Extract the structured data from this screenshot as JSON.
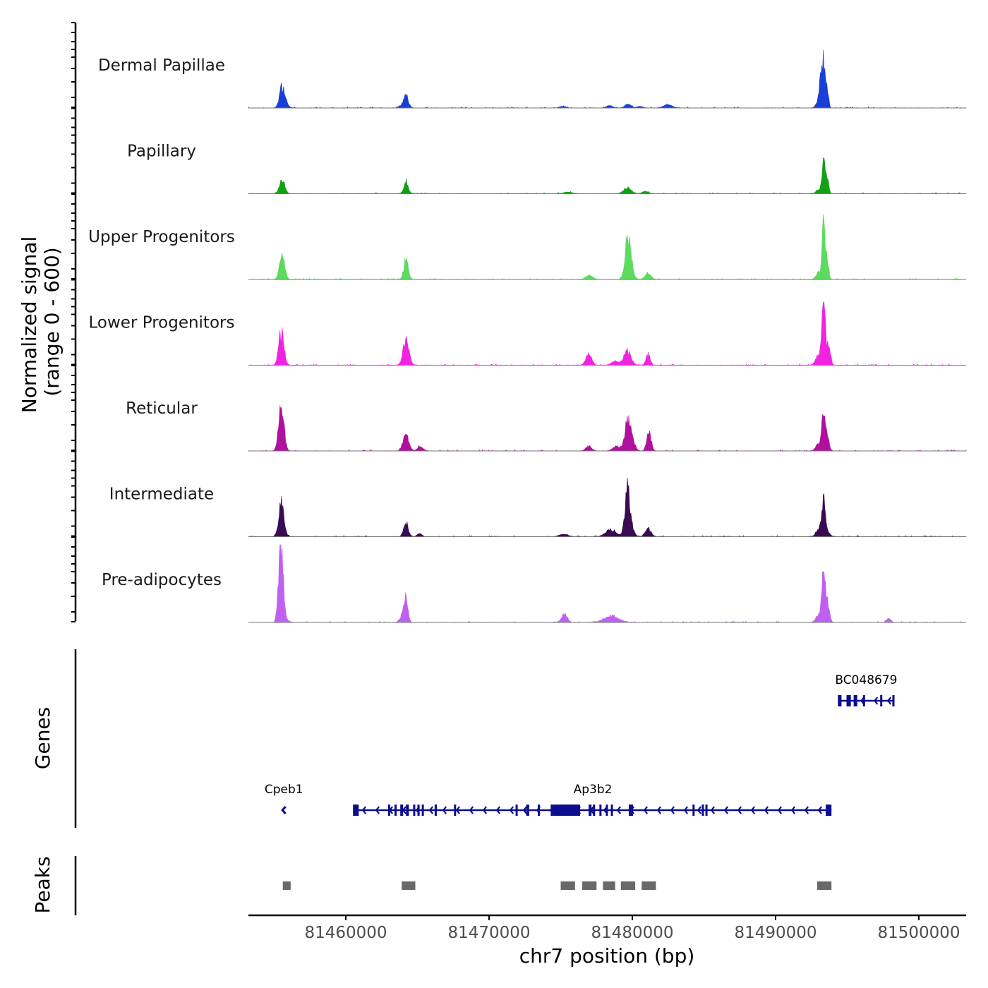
{
  "chart_data": {
    "type": "coverage-track",
    "title": "",
    "chromosome": "chr7",
    "xlabel": "chr7 position (bp)",
    "ylabel": [
      "Normalized signal",
      "(range 0 - 600)"
    ],
    "signal_range": [
      0,
      600
    ],
    "xlim": [
      81453200,
      81503300
    ],
    "x_ticks": [
      81460000,
      81470000,
      81480000,
      81490000,
      81500000
    ],
    "x_tick_labels": [
      "81460000",
      "81470000",
      "81480000",
      "81490000",
      "81500000"
    ],
    "tracks": [
      {
        "name": "Dermal Papillae",
        "color": "#1a3fd6",
        "peaks": [
          [
            81455550,
            0.27,
            180
          ],
          [
            81455850,
            0.03,
            200
          ],
          [
            81464220,
            0.13,
            150
          ],
          [
            81464050,
            0.04,
            250
          ],
          [
            81482480,
            0.04,
            300
          ],
          [
            81475120,
            0.02,
            200
          ],
          [
            81478420,
            0.03,
            200
          ],
          [
            81479700,
            0.05,
            200
          ],
          [
            81480500,
            0.02,
            200
          ],
          [
            81493350,
            0.58,
            90
          ],
          [
            81493600,
            0.28,
            90
          ],
          [
            81493050,
            0.12,
            180
          ],
          [
            81493150,
            0.3,
            80
          ]
        ]
      },
      {
        "name": "Papillary",
        "color": "#14a014",
        "peaks": [
          [
            81455550,
            0.18,
            180
          ],
          [
            81464210,
            0.15,
            150
          ],
          [
            81479650,
            0.08,
            250
          ],
          [
            81480900,
            0.03,
            200
          ],
          [
            81475500,
            0.02,
            300
          ],
          [
            81493350,
            0.4,
            100
          ],
          [
            81493600,
            0.22,
            100
          ],
          [
            81493050,
            0.05,
            200
          ]
        ]
      },
      {
        "name": "Upper Progenitors",
        "color": "#5ddb5d",
        "peaks": [
          [
            81455550,
            0.28,
            180
          ],
          [
            81464210,
            0.27,
            150
          ],
          [
            81477000,
            0.05,
            250
          ],
          [
            81479650,
            0.42,
            180
          ],
          [
            81479850,
            0.18,
            200
          ],
          [
            81481100,
            0.08,
            200
          ],
          [
            81493350,
            0.7,
            90
          ],
          [
            81493600,
            0.28,
            100
          ],
          [
            81493050,
            0.1,
            200
          ]
        ]
      },
      {
        "name": "Lower Progenitors",
        "color": "#f024e0",
        "peaks": [
          [
            81455500,
            0.42,
            180
          ],
          [
            81464200,
            0.33,
            200
          ],
          [
            81476950,
            0.13,
            200
          ],
          [
            81479650,
            0.18,
            250
          ],
          [
            81478800,
            0.05,
            250
          ],
          [
            81481100,
            0.14,
            150
          ],
          [
            81493350,
            0.85,
            110
          ],
          [
            81493700,
            0.3,
            120
          ],
          [
            81493000,
            0.12,
            200
          ]
        ]
      },
      {
        "name": "Reticular",
        "color": "#b0109e",
        "peaks": [
          [
            81455500,
            0.55,
            180
          ],
          [
            81464200,
            0.2,
            200
          ],
          [
            81465200,
            0.05,
            200
          ],
          [
            81476950,
            0.06,
            200
          ],
          [
            81479650,
            0.33,
            200
          ],
          [
            81479950,
            0.15,
            200
          ],
          [
            81478900,
            0.06,
            250
          ],
          [
            81481150,
            0.25,
            150
          ],
          [
            81493350,
            0.55,
            110
          ],
          [
            81493600,
            0.18,
            120
          ],
          [
            81493000,
            0.08,
            200
          ]
        ]
      },
      {
        "name": "Intermediate",
        "color": "#3a0a55",
        "peaks": [
          [
            81455500,
            0.43,
            180
          ],
          [
            81464200,
            0.17,
            160
          ],
          [
            81465150,
            0.04,
            150
          ],
          [
            81475200,
            0.03,
            300
          ],
          [
            81478500,
            0.09,
            350
          ],
          [
            81479650,
            0.55,
            170
          ],
          [
            81479900,
            0.12,
            200
          ],
          [
            81481100,
            0.1,
            200
          ],
          [
            81493350,
            0.48,
            110
          ],
          [
            81493050,
            0.1,
            200
          ],
          [
            81493650,
            0.06,
            150
          ]
        ]
      },
      {
        "name": "Pre-adipocytes",
        "color": "#c060f0",
        "peaks": [
          [
            81455450,
            0.95,
            150
          ],
          [
            81455650,
            0.12,
            180
          ],
          [
            81464180,
            0.3,
            140
          ],
          [
            81464000,
            0.08,
            200
          ],
          [
            81475250,
            0.1,
            200
          ],
          [
            81478550,
            0.08,
            500
          ],
          [
            81493350,
            0.72,
            110
          ],
          [
            81493650,
            0.25,
            120
          ],
          [
            81493000,
            0.1,
            180
          ],
          [
            81497900,
            0.05,
            150
          ]
        ]
      }
    ],
    "genes": [
      {
        "name": "BC048679",
        "strand": "-",
        "start": 81494350,
        "end": 81498300,
        "row": 1,
        "exons": [
          [
            81494350,
            81494600
          ],
          [
            81494950,
            81495250
          ],
          [
            81495450,
            81495700
          ],
          [
            81496100,
            81496200
          ],
          [
            81497300,
            81497400
          ],
          [
            81498150,
            81498300
          ]
        ]
      },
      {
        "name": "Cpeb1",
        "strand": "-",
        "start": 81455550,
        "end": 81455800,
        "row": 2,
        "exons": []
      },
      {
        "name": "Ap3b2",
        "strand": "-",
        "start": 81460500,
        "end": 81493900,
        "row": 2,
        "exons": [
          [
            81460500,
            81460900
          ],
          [
            81462950,
            81463050
          ],
          [
            81463400,
            81463500
          ],
          [
            81463800,
            81464000
          ],
          [
            81464200,
            81464400
          ],
          [
            81464700,
            81464800
          ],
          [
            81465000,
            81465150
          ],
          [
            81465300,
            81465400
          ],
          [
            81466200,
            81466350
          ],
          [
            81467550,
            81467650
          ],
          [
            81471850,
            81471950
          ],
          [
            81472600,
            81472800
          ],
          [
            81473400,
            81473550
          ],
          [
            81474300,
            81474400
          ],
          [
            81474450,
            81476350
          ],
          [
            81476950,
            81477150
          ],
          [
            81477250,
            81477400
          ],
          [
            81477700,
            81477800
          ],
          [
            81478150,
            81478250
          ],
          [
            81478500,
            81478600
          ],
          [
            81479750,
            81480050
          ],
          [
            81484200,
            81484300
          ],
          [
            81484850,
            81484950
          ],
          [
            81485100,
            81485200
          ],
          [
            81493500,
            81493900
          ]
        ]
      }
    ],
    "peaks_track": [
      [
        81455600,
        81456150
      ],
      [
        81463900,
        81464850
      ],
      [
        81475000,
        81476000
      ],
      [
        81476500,
        81477500
      ],
      [
        81477950,
        81478800
      ],
      [
        81479200,
        81480200
      ],
      [
        81480650,
        81481650
      ],
      [
        81492900,
        81493900
      ]
    ],
    "panel_titles": [
      "Genes",
      "Peaks"
    ]
  },
  "colors": {
    "gene": "#0d0d8f",
    "peak_box": "#696969",
    "baseline": "#777777"
  }
}
